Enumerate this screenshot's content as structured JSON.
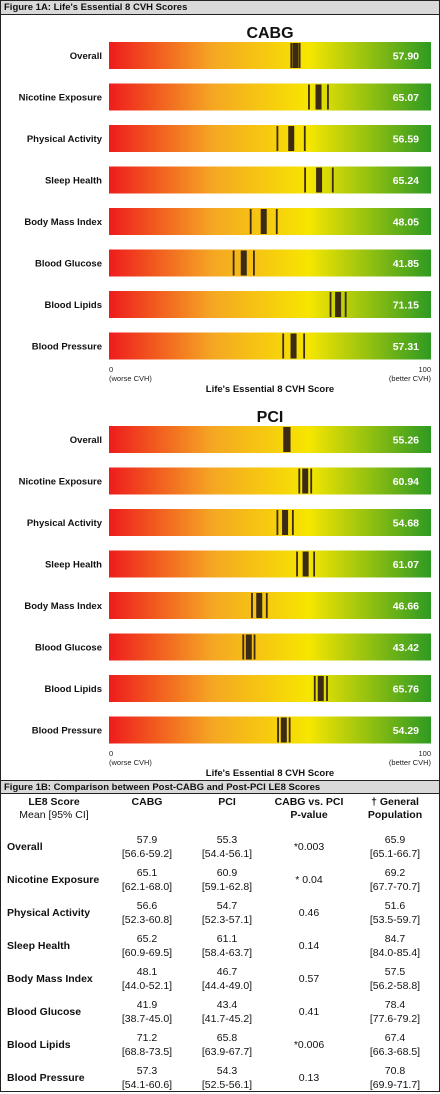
{
  "figure_1a": {
    "header": "Figure 1A: Life's Essential 8 CVH Scores"
  },
  "figure_1b": {
    "header": "Figure 1B: Comparison between Post-CABG and Post-PCI LE8 Scores"
  },
  "colors": {
    "scale_low": "#ee1c1c",
    "scale_mid_orange": "#f5a623",
    "scale_yellow": "#f6e600",
    "scale_high": "#2e9a22",
    "marker": "#3b2a14"
  },
  "chart_data": [
    {
      "type": "bar",
      "title": "CABG",
      "xlabel": "Life's Essential 8 CVH Score",
      "xlim": [
        0,
        100
      ],
      "x_axis_min_label": "0",
      "x_axis_min_sublabel": "(worse CVH)",
      "x_axis_max_label": "100",
      "x_axis_max_sublabel": "(better CVH)",
      "categories": [
        "Overall",
        "Nicotine Exposure",
        "Physical Activity",
        "Sleep Health",
        "Body Mass Index",
        "Blood Glucose",
        "Blood Lipids",
        "Blood Pressure"
      ],
      "values": [
        57.9,
        65.07,
        56.59,
        65.24,
        48.05,
        41.85,
        71.15,
        57.31
      ],
      "value_labels": [
        "57.90",
        "65.07",
        "56.59",
        "65.24",
        "48.05",
        "41.85",
        "71.15",
        "57.31"
      ],
      "ci_low": [
        56.6,
        62.1,
        52.3,
        60.9,
        44.0,
        38.7,
        68.8,
        54.1
      ],
      "ci_high": [
        59.2,
        68.0,
        60.8,
        69.5,
        52.1,
        45.0,
        73.5,
        60.6
      ]
    },
    {
      "type": "bar",
      "title": "PCI",
      "xlabel": "Life's Essential 8 CVH Score",
      "xlim": [
        0,
        100
      ],
      "x_axis_min_label": "0",
      "x_axis_min_sublabel": "(worse CVH)",
      "x_axis_max_label": "100",
      "x_axis_max_sublabel": "(better CVH)",
      "categories": [
        "Overall",
        "Nicotine Exposure",
        "Physical Activity",
        "Sleep Health",
        "Body Mass Index",
        "Blood Glucose",
        "Blood Lipids",
        "Blood Pressure"
      ],
      "values": [
        55.26,
        60.94,
        54.68,
        61.07,
        46.66,
        43.42,
        65.76,
        54.29
      ],
      "value_labels": [
        "55.26",
        "60.94",
        "54.68",
        "61.07",
        "46.66",
        "43.42",
        "65.76",
        "54.29"
      ],
      "ci_low": [
        54.4,
        59.1,
        52.3,
        58.4,
        44.4,
        41.7,
        63.9,
        52.5
      ],
      "ci_high": [
        56.1,
        62.8,
        57.1,
        63.7,
        49.0,
        45.2,
        67.7,
        56.1
      ]
    },
    {
      "type": "table",
      "headers": {
        "score": "LE8 Score",
        "score_sub": "Mean [95% CI]",
        "cabg": "CABG",
        "pci": "PCI",
        "pvalue": "CABG vs. PCI",
        "pvalue_sub": "P-value",
        "general": "† General",
        "general_sub": "Population"
      },
      "rows": [
        {
          "label": "Overall",
          "cabg_mean": "57.9",
          "cabg_ci": "[56.6-59.2]",
          "pci_mean": "55.3",
          "pci_ci": "[54.4-56.1]",
          "p": "*0.003",
          "gen_mean": "65.9",
          "gen_ci": "[65.1-66.7]"
        },
        {
          "label": "Nicotine Exposure",
          "cabg_mean": "65.1",
          "cabg_ci": "[62.1-68.0]",
          "pci_mean": "60.9",
          "pci_ci": "[59.1-62.8]",
          "p": "* 0.04",
          "gen_mean": "69.2",
          "gen_ci": "[67.7-70.7]"
        },
        {
          "label": "Physical Activity",
          "cabg_mean": "56.6",
          "cabg_ci": "[52.3-60.8]",
          "pci_mean": "54.7",
          "pci_ci": "[52.3-57.1]",
          "p": "0.46",
          "gen_mean": "51.6",
          "gen_ci": "[53.5-59.7]"
        },
        {
          "label": "Sleep Health",
          "cabg_mean": "65.2",
          "cabg_ci": "[60.9-69.5]",
          "pci_mean": "61.1",
          "pci_ci": "[58.4-63.7]",
          "p": "0.14",
          "gen_mean": "84.7",
          "gen_ci": "[84.0-85.4]"
        },
        {
          "label": "Body Mass Index",
          "cabg_mean": "48.1",
          "cabg_ci": "[44.0-52.1]",
          "pci_mean": "46.7",
          "pci_ci": "[44.4-49.0]",
          "p": "0.57",
          "gen_mean": "57.5",
          "gen_ci": "[56.2-58.8]"
        },
        {
          "label": "Blood Glucose",
          "cabg_mean": "41.9",
          "cabg_ci": "[38.7-45.0]",
          "pci_mean": "43.4",
          "pci_ci": "[41.7-45.2]",
          "p": "0.41",
          "gen_mean": "78.4",
          "gen_ci": "[77.6-79.2]"
        },
        {
          "label": "Blood Lipids",
          "cabg_mean": "71.2",
          "cabg_ci": "[68.8-73.5]",
          "pci_mean": "65.8",
          "pci_ci": "[63.9-67.7]",
          "p": "*0.006",
          "gen_mean": "67.4",
          "gen_ci": "[66.3-68.5]"
        },
        {
          "label": "Blood Pressure",
          "cabg_mean": "57.3",
          "cabg_ci": "[54.1-60.6]",
          "pci_mean": "54.3",
          "pci_ci": "[52.5-56.1]",
          "p": "0.13",
          "gen_mean": "70.8",
          "gen_ci": "[69.9-71.7]"
        }
      ]
    }
  ]
}
